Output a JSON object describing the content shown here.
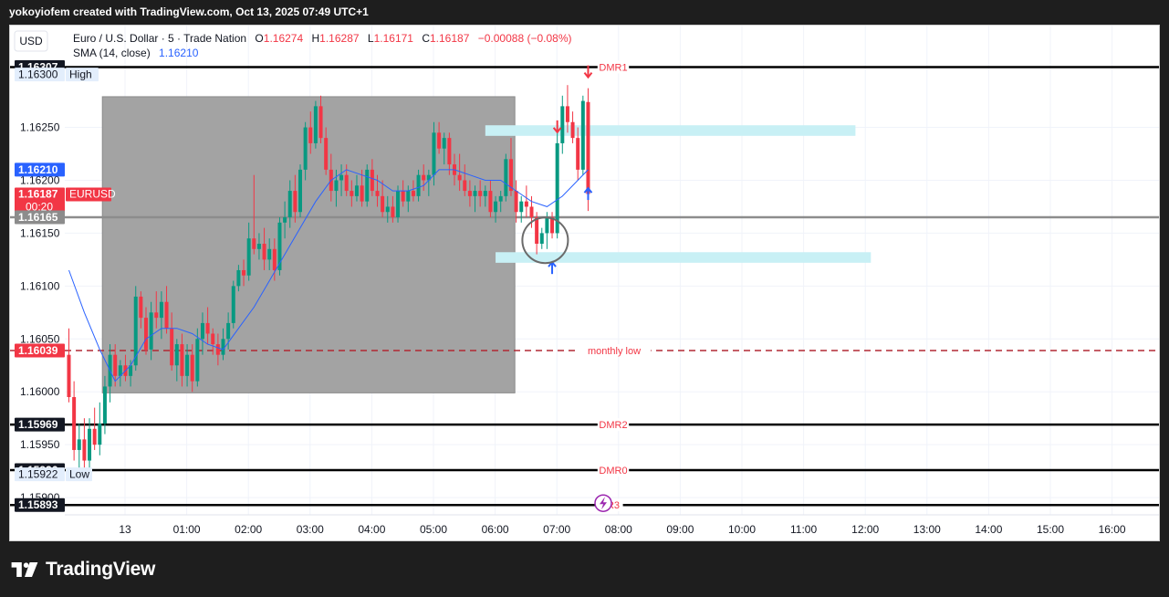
{
  "header": {
    "attribution": "yokoyiofem created with TradingView.com, Oct 13, 2025 07:49 UTC+1"
  },
  "currency_button": "USD",
  "legend": {
    "symbol": "Euro / U.S. Dollar · 5 · Trade Nation",
    "o_label": "O",
    "o_value": "1.16274",
    "h_label": "H",
    "h_value": "1.16287",
    "l_label": "L",
    "l_value": "1.16171",
    "c_label": "C",
    "c_value": "1.16187",
    "change": "−0.00088 (−0.08%)",
    "indicator": "SMA (14, close)",
    "indicator_value": "1.16210"
  },
  "footer": {
    "brand": "TradingView"
  },
  "colors": {
    "up": "#089981",
    "down": "#f23645",
    "sma": "#2962ff",
    "zone": "#c8f0f5",
    "box": "#a3a3a3"
  },
  "chart_data": {
    "type": "candlestick",
    "symbol": "EURUSD",
    "timeframe": "5",
    "y_axis_ticks": [
      "1.16250",
      "1.16200",
      "1.16150",
      "1.16100",
      "1.16050",
      "1.16000",
      "1.15950",
      "1.15900"
    ],
    "ylim": [
      1.1588,
      1.1632
    ],
    "x_ticks": [
      "13",
      "01:00",
      "02:00",
      "03:00",
      "04:00",
      "05:00",
      "06:00",
      "07:00",
      "08:00",
      "09:00",
      "10:00",
      "11:00",
      "12:00",
      "13:00",
      "14:00",
      "15:00",
      "16:00"
    ],
    "price_labels": [
      {
        "text": "1.16307",
        "value": 1.16307,
        "style": "dark"
      },
      {
        "text": "1.16300",
        "value": 1.163,
        "style": "light",
        "tag": "High"
      },
      {
        "text": "1.16210",
        "value": 1.1621,
        "style": "blue"
      },
      {
        "text": "1.16187",
        "value": 1.16187,
        "style": "red",
        "tag": "EURUSD",
        "sub": "00:20"
      },
      {
        "text": "1.16165",
        "value": 1.16165,
        "style": "gray"
      },
      {
        "text": "1.16039",
        "value": 1.16039,
        "style": "red"
      },
      {
        "text": "1.15969",
        "value": 1.15969,
        "style": "dark"
      },
      {
        "text": "1.15926",
        "value": 1.15926,
        "style": "dark"
      },
      {
        "text": "1.15922",
        "value": 1.15922,
        "style": "light",
        "tag": "Low"
      },
      {
        "text": "1.15893",
        "value": 1.15893,
        "style": "dark"
      }
    ],
    "horizontal_levels": [
      {
        "label": "DMR1",
        "value": 1.16307,
        "style": "solid-black"
      },
      {
        "label": "",
        "value": 1.16165,
        "style": "solid-gray"
      },
      {
        "label": "monthly low",
        "value": 1.16039,
        "style": "dashed-red"
      },
      {
        "label": "DMR2",
        "value": 1.15969,
        "style": "solid-black"
      },
      {
        "label": "DMR0",
        "value": 1.15926,
        "style": "solid-black"
      },
      {
        "label": "R3",
        "value": 1.15893,
        "style": "solid-black"
      }
    ],
    "zones": [
      {
        "from_time": "06:00",
        "to_time": "12:00",
        "low": 1.16242,
        "high": 1.16252
      },
      {
        "from_time": "06:10",
        "to_time": "12:15",
        "low": 1.16122,
        "high": 1.16132
      }
    ],
    "range_box": {
      "from_time": "00:00",
      "to_time": "05:55",
      "low": 1.15999,
      "high": 1.16279
    },
    "candles": [
      {
        "t": "23:15",
        "o": 1.16035,
        "h": 1.1606,
        "l": 1.1599,
        "c": 1.15995
      },
      {
        "t": "23:20",
        "o": 1.15995,
        "h": 1.1601,
        "l": 1.15935,
        "c": 1.15945
      },
      {
        "t": "23:25",
        "o": 1.15945,
        "h": 1.1597,
        "l": 1.15925,
        "c": 1.15955
      },
      {
        "t": "23:30",
        "o": 1.15955,
        "h": 1.15975,
        "l": 1.1592,
        "c": 1.15935
      },
      {
        "t": "23:35",
        "o": 1.15935,
        "h": 1.15975,
        "l": 1.15925,
        "c": 1.15965
      },
      {
        "t": "23:40",
        "o": 1.15965,
        "h": 1.15985,
        "l": 1.15945,
        "c": 1.1595
      },
      {
        "t": "23:45",
        "o": 1.1595,
        "h": 1.1599,
        "l": 1.1594,
        "c": 1.1597
      },
      {
        "t": "23:50",
        "o": 1.1597,
        "h": 1.16015,
        "l": 1.1596,
        "c": 1.16005
      },
      {
        "t": "23:55",
        "o": 1.16005,
        "h": 1.16045,
        "l": 1.1599,
        "c": 1.16035
      },
      {
        "t": "00:00",
        "o": 1.16035,
        "h": 1.16045,
        "l": 1.16005,
        "c": 1.16015
      },
      {
        "t": "00:05",
        "o": 1.16015,
        "h": 1.1603,
        "l": 1.16005,
        "c": 1.16025
      },
      {
        "t": "00:10",
        "o": 1.16025,
        "h": 1.16035,
        "l": 1.1601,
        "c": 1.16015
      },
      {
        "t": "00:15",
        "o": 1.16015,
        "h": 1.1603,
        "l": 1.16005,
        "c": 1.16025
      },
      {
        "t": "00:20",
        "o": 1.16025,
        "h": 1.161,
        "l": 1.1602,
        "c": 1.1609
      },
      {
        "t": "00:25",
        "o": 1.1609,
        "h": 1.16095,
        "l": 1.1606,
        "c": 1.1607
      },
      {
        "t": "00:30",
        "o": 1.1607,
        "h": 1.1608,
        "l": 1.16035,
        "c": 1.1604
      },
      {
        "t": "00:35",
        "o": 1.1604,
        "h": 1.16085,
        "l": 1.1603,
        "c": 1.16075
      },
      {
        "t": "00:40",
        "o": 1.16075,
        "h": 1.16095,
        "l": 1.1606,
        "c": 1.1607
      },
      {
        "t": "00:45",
        "o": 1.1607,
        "h": 1.16095,
        "l": 1.1605,
        "c": 1.16085
      },
      {
        "t": "00:50",
        "o": 1.16085,
        "h": 1.161,
        "l": 1.16055,
        "c": 1.1606
      },
      {
        "t": "00:55",
        "o": 1.1606,
        "h": 1.16075,
        "l": 1.1602,
        "c": 1.16025
      },
      {
        "t": "01:00",
        "o": 1.16025,
        "h": 1.1605,
        "l": 1.1601,
        "c": 1.16045
      },
      {
        "t": "01:05",
        "o": 1.16045,
        "h": 1.16055,
        "l": 1.16005,
        "c": 1.16015
      },
      {
        "t": "01:10",
        "o": 1.16015,
        "h": 1.16045,
        "l": 1.16005,
        "c": 1.16035
      },
      {
        "t": "01:15",
        "o": 1.16035,
        "h": 1.16045,
        "l": 1.16,
        "c": 1.1601
      },
      {
        "t": "01:20",
        "o": 1.1601,
        "h": 1.1606,
        "l": 1.16005,
        "c": 1.1605
      },
      {
        "t": "01:25",
        "o": 1.1605,
        "h": 1.16075,
        "l": 1.16035,
        "c": 1.16065
      },
      {
        "t": "01:30",
        "o": 1.16065,
        "h": 1.1608,
        "l": 1.16045,
        "c": 1.16055
      },
      {
        "t": "01:35",
        "o": 1.16055,
        "h": 1.1606,
        "l": 1.16035,
        "c": 1.16045
      },
      {
        "t": "01:40",
        "o": 1.16045,
        "h": 1.16055,
        "l": 1.16025,
        "c": 1.16035
      },
      {
        "t": "01:45",
        "o": 1.16035,
        "h": 1.1606,
        "l": 1.1603,
        "c": 1.1605
      },
      {
        "t": "01:50",
        "o": 1.1605,
        "h": 1.16075,
        "l": 1.1604,
        "c": 1.16065
      },
      {
        "t": "01:55",
        "o": 1.16065,
        "h": 1.16105,
        "l": 1.1606,
        "c": 1.161
      },
      {
        "t": "02:00",
        "o": 1.161,
        "h": 1.1612,
        "l": 1.16095,
        "c": 1.16115
      },
      {
        "t": "02:05",
        "o": 1.16115,
        "h": 1.16125,
        "l": 1.161,
        "c": 1.1611
      },
      {
        "t": "02:10",
        "o": 1.1611,
        "h": 1.1616,
        "l": 1.16105,
        "c": 1.16145
      },
      {
        "t": "02:15",
        "o": 1.16145,
        "h": 1.16205,
        "l": 1.1613,
        "c": 1.16135
      },
      {
        "t": "02:20",
        "o": 1.16135,
        "h": 1.1615,
        "l": 1.16125,
        "c": 1.1614
      },
      {
        "t": "02:25",
        "o": 1.1614,
        "h": 1.16155,
        "l": 1.16115,
        "c": 1.16125
      },
      {
        "t": "02:30",
        "o": 1.16125,
        "h": 1.16145,
        "l": 1.16115,
        "c": 1.16135
      },
      {
        "t": "02:35",
        "o": 1.16135,
        "h": 1.16145,
        "l": 1.16105,
        "c": 1.16115
      },
      {
        "t": "02:40",
        "o": 1.16115,
        "h": 1.16165,
        "l": 1.1611,
        "c": 1.1616
      },
      {
        "t": "02:45",
        "o": 1.1616,
        "h": 1.1618,
        "l": 1.16145,
        "c": 1.16165
      },
      {
        "t": "02:50",
        "o": 1.16165,
        "h": 1.162,
        "l": 1.16155,
        "c": 1.1619
      },
      {
        "t": "02:55",
        "o": 1.1619,
        "h": 1.16205,
        "l": 1.1616,
        "c": 1.1617
      },
      {
        "t": "03:00",
        "o": 1.1617,
        "h": 1.16215,
        "l": 1.16165,
        "c": 1.1621
      },
      {
        "t": "03:05",
        "o": 1.1621,
        "h": 1.16255,
        "l": 1.162,
        "c": 1.1625
      },
      {
        "t": "03:10",
        "o": 1.1625,
        "h": 1.16265,
        "l": 1.16225,
        "c": 1.16235
      },
      {
        "t": "03:15",
        "o": 1.16235,
        "h": 1.16275,
        "l": 1.1623,
        "c": 1.1627
      },
      {
        "t": "03:20",
        "o": 1.1627,
        "h": 1.1628,
        "l": 1.16235,
        "c": 1.1624
      },
      {
        "t": "03:25",
        "o": 1.1624,
        "h": 1.1625,
        "l": 1.16205,
        "c": 1.1621
      },
      {
        "t": "03:30",
        "o": 1.1621,
        "h": 1.16225,
        "l": 1.1618,
        "c": 1.1619
      },
      {
        "t": "03:35",
        "o": 1.1619,
        "h": 1.1621,
        "l": 1.16175,
        "c": 1.162
      },
      {
        "t": "03:40",
        "o": 1.162,
        "h": 1.16215,
        "l": 1.16185,
        "c": 1.16205
      },
      {
        "t": "03:45",
        "o": 1.16205,
        "h": 1.16215,
        "l": 1.16185,
        "c": 1.1619
      },
      {
        "t": "03:50",
        "o": 1.1619,
        "h": 1.162,
        "l": 1.16175,
        "c": 1.16185
      },
      {
        "t": "03:55",
        "o": 1.16185,
        "h": 1.16205,
        "l": 1.1618,
        "c": 1.16195
      },
      {
        "t": "04:00",
        "o": 1.16195,
        "h": 1.1621,
        "l": 1.16175,
        "c": 1.1618
      },
      {
        "t": "04:05",
        "o": 1.1618,
        "h": 1.16215,
        "l": 1.16175,
        "c": 1.1621
      },
      {
        "t": "04:10",
        "o": 1.1621,
        "h": 1.1622,
        "l": 1.16185,
        "c": 1.1619
      },
      {
        "t": "04:15",
        "o": 1.1619,
        "h": 1.16205,
        "l": 1.16175,
        "c": 1.16185
      },
      {
        "t": "04:20",
        "o": 1.16185,
        "h": 1.162,
        "l": 1.16165,
        "c": 1.1617
      },
      {
        "t": "04:25",
        "o": 1.1617,
        "h": 1.16185,
        "l": 1.1616,
        "c": 1.16175
      },
      {
        "t": "04:30",
        "o": 1.16175,
        "h": 1.16185,
        "l": 1.1616,
        "c": 1.16165
      },
      {
        "t": "04:35",
        "o": 1.16165,
        "h": 1.16195,
        "l": 1.1616,
        "c": 1.1619
      },
      {
        "t": "04:40",
        "o": 1.1619,
        "h": 1.162,
        "l": 1.16175,
        "c": 1.1618
      },
      {
        "t": "04:45",
        "o": 1.1618,
        "h": 1.16195,
        "l": 1.1617,
        "c": 1.1619
      },
      {
        "t": "04:50",
        "o": 1.1619,
        "h": 1.162,
        "l": 1.1618,
        "c": 1.16185
      },
      {
        "t": "04:55",
        "o": 1.16185,
        "h": 1.1621,
        "l": 1.1618,
        "c": 1.16205
      },
      {
        "t": "05:00",
        "o": 1.16205,
        "h": 1.16215,
        "l": 1.1619,
        "c": 1.162
      },
      {
        "t": "05:05",
        "o": 1.162,
        "h": 1.1621,
        "l": 1.16185,
        "c": 1.16205
      },
      {
        "t": "05:10",
        "o": 1.16205,
        "h": 1.16255,
        "l": 1.16195,
        "c": 1.16245
      },
      {
        "t": "05:15",
        "o": 1.16245,
        "h": 1.16255,
        "l": 1.16225,
        "c": 1.1623
      },
      {
        "t": "05:20",
        "o": 1.1623,
        "h": 1.16245,
        "l": 1.16215,
        "c": 1.1624
      },
      {
        "t": "05:25",
        "o": 1.1624,
        "h": 1.16245,
        "l": 1.16205,
        "c": 1.16215
      },
      {
        "t": "05:30",
        "o": 1.16215,
        "h": 1.16225,
        "l": 1.16195,
        "c": 1.16205
      },
      {
        "t": "05:35",
        "o": 1.16205,
        "h": 1.16225,
        "l": 1.1619,
        "c": 1.162
      },
      {
        "t": "05:40",
        "o": 1.162,
        "h": 1.16215,
        "l": 1.16185,
        "c": 1.1619
      },
      {
        "t": "05:45",
        "o": 1.1619,
        "h": 1.162,
        "l": 1.16175,
        "c": 1.16185
      },
      {
        "t": "05:50",
        "o": 1.16185,
        "h": 1.16195,
        "l": 1.1617,
        "c": 1.1619
      },
      {
        "t": "05:55",
        "o": 1.1619,
        "h": 1.162,
        "l": 1.16175,
        "c": 1.16185
      },
      {
        "t": "06:00",
        "o": 1.16185,
        "h": 1.16195,
        "l": 1.16175,
        "c": 1.1619
      },
      {
        "t": "06:05",
        "o": 1.1619,
        "h": 1.162,
        "l": 1.16165,
        "c": 1.1617
      },
      {
        "t": "06:10",
        "o": 1.1617,
        "h": 1.16185,
        "l": 1.1616,
        "c": 1.1618
      },
      {
        "t": "06:15",
        "o": 1.1618,
        "h": 1.1619,
        "l": 1.1617,
        "c": 1.16185
      },
      {
        "t": "06:20",
        "o": 1.16185,
        "h": 1.16225,
        "l": 1.1618,
        "c": 1.1622
      },
      {
        "t": "06:25",
        "o": 1.1622,
        "h": 1.1624,
        "l": 1.16185,
        "c": 1.1619
      },
      {
        "t": "06:30",
        "o": 1.1619,
        "h": 1.162,
        "l": 1.1616,
        "c": 1.1617
      },
      {
        "t": "06:35",
        "o": 1.1617,
        "h": 1.16185,
        "l": 1.1616,
        "c": 1.1618
      },
      {
        "t": "06:40",
        "o": 1.1618,
        "h": 1.16195,
        "l": 1.16165,
        "c": 1.16175
      },
      {
        "t": "06:45",
        "o": 1.16175,
        "h": 1.16185,
        "l": 1.16155,
        "c": 1.16165
      },
      {
        "t": "06:50",
        "o": 1.16165,
        "h": 1.1617,
        "l": 1.1613,
        "c": 1.1614
      },
      {
        "t": "06:55",
        "o": 1.1614,
        "h": 1.16155,
        "l": 1.16135,
        "c": 1.1615
      },
      {
        "t": "07:00",
        "o": 1.1615,
        "h": 1.1617,
        "l": 1.16135,
        "c": 1.16165
      },
      {
        "t": "07:05",
        "o": 1.16165,
        "h": 1.1617,
        "l": 1.16145,
        "c": 1.1615
      },
      {
        "t": "07:10",
        "o": 1.1615,
        "h": 1.1625,
        "l": 1.16145,
        "c": 1.16235
      },
      {
        "t": "07:15",
        "o": 1.16235,
        "h": 1.1628,
        "l": 1.16225,
        "c": 1.1627
      },
      {
        "t": "07:20",
        "o": 1.1627,
        "h": 1.1629,
        "l": 1.16245,
        "c": 1.16255
      },
      {
        "t": "07:25",
        "o": 1.16255,
        "h": 1.16265,
        "l": 1.16235,
        "c": 1.1624
      },
      {
        "t": "07:30",
        "o": 1.1624,
        "h": 1.1625,
        "l": 1.162,
        "c": 1.1621
      },
      {
        "t": "07:35",
        "o": 1.1621,
        "h": 1.1628,
        "l": 1.16205,
        "c": 1.16275
      },
      {
        "t": "07:40",
        "o": 1.16274,
        "h": 1.16287,
        "l": 1.16171,
        "c": 1.16187
      }
    ],
    "sma": {
      "period": 14,
      "points": [
        [
          "23:15",
          1.16115
        ],
        [
          "23:30",
          1.16075
        ],
        [
          "23:45",
          1.1604
        ],
        [
          "00:00",
          1.1601
        ],
        [
          "00:15",
          1.16025
        ],
        [
          "00:30",
          1.1605
        ],
        [
          "00:45",
          1.1606
        ],
        [
          "01:00",
          1.1606
        ],
        [
          "01:15",
          1.16055
        ],
        [
          "01:30",
          1.16045
        ],
        [
          "01:45",
          1.1604
        ],
        [
          "02:00",
          1.1606
        ],
        [
          "02:15",
          1.1608
        ],
        [
          "02:30",
          1.16105
        ],
        [
          "02:45",
          1.1613
        ],
        [
          "03:00",
          1.16155
        ],
        [
          "03:15",
          1.1618
        ],
        [
          "03:30",
          1.162
        ],
        [
          "03:45",
          1.1621
        ],
        [
          "04:00",
          1.16205
        ],
        [
          "04:15",
          1.162
        ],
        [
          "04:30",
          1.1619
        ],
        [
          "04:45",
          1.1619
        ],
        [
          "05:00",
          1.16195
        ],
        [
          "05:15",
          1.1621
        ],
        [
          "05:30",
          1.1621
        ],
        [
          "05:45",
          1.16205
        ],
        [
          "06:00",
          1.162
        ],
        [
          "06:15",
          1.162
        ],
        [
          "06:30",
          1.1619
        ],
        [
          "06:45",
          1.1618
        ],
        [
          "07:00",
          1.16175
        ],
        [
          "07:15",
          1.16185
        ],
        [
          "07:30",
          1.162
        ],
        [
          "07:40",
          1.1621
        ]
      ]
    },
    "annotations": [
      {
        "type": "arrow-down",
        "time": "07:10",
        "price": 1.16248
      },
      {
        "type": "arrow-down",
        "time": "07:40",
        "price": 1.163
      },
      {
        "type": "arrow-up",
        "time": "07:40",
        "price": 1.1619
      },
      {
        "type": "arrow-up",
        "time": "07:05",
        "price": 1.1612
      },
      {
        "type": "circle",
        "time": "07:00",
        "price": 1.16145
      }
    ]
  }
}
